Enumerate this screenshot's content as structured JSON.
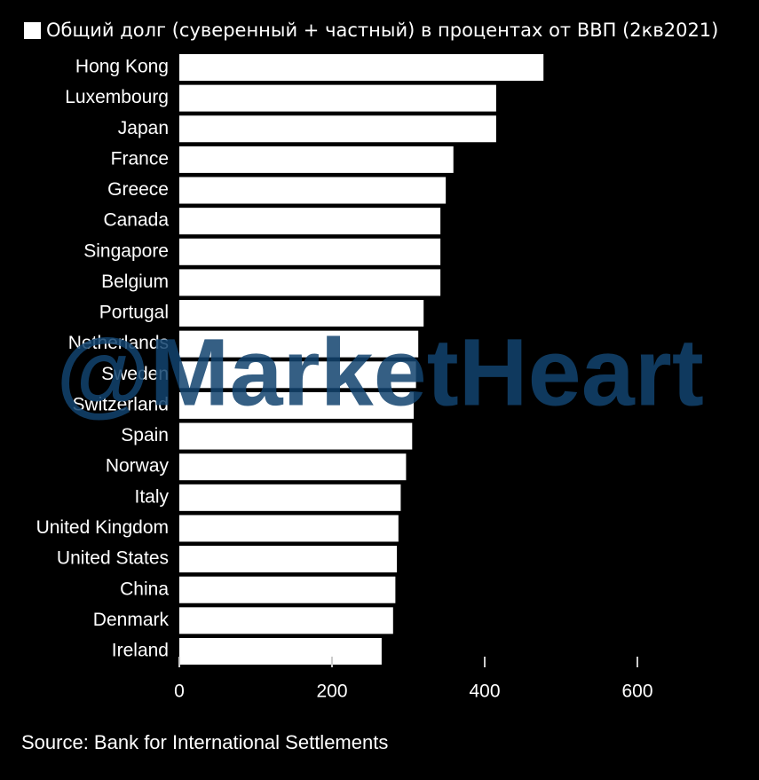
{
  "chart_data": {
    "type": "barh",
    "categories": [
      "Hong Kong",
      "Luxembourg",
      "Japan",
      "France",
      "Greece",
      "Canada",
      "Singapore",
      "Belgium",
      "Portugal",
      "Netherlands",
      "Sweden",
      "Switzerland",
      "Spain",
      "Norway",
      "Italy",
      "United Kingdom",
      "United States",
      "China",
      "Denmark",
      "Ireland"
    ],
    "series": [
      {
        "name": "Общий долг (суверенный + частный) в процентах от ВВП (2кв2021)",
        "color": "#ffffff",
        "values": [
          477,
          415,
          415,
          359,
          349,
          342,
          342,
          342,
          320,
          313,
          310,
          307,
          305,
          297,
          290,
          287,
          285,
          283,
          280,
          265
        ]
      }
    ],
    "xlim": [
      0,
      750
    ],
    "xticks": [
      0,
      200,
      400,
      600
    ],
    "source": "Source: Bank for International Settlements",
    "watermark": "@MarketHeart"
  }
}
